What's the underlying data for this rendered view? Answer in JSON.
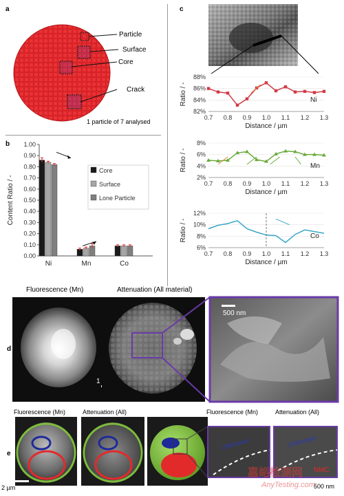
{
  "panels": {
    "a": {
      "letter": "a",
      "labels": {
        "particle": "Particle",
        "surface": "Surface",
        "core": "Core",
        "crack": "Crack"
      },
      "caption": "1 particle of 7 analysed",
      "colors": {
        "sphere": "#e8262a",
        "sphere_edge": "#b31418",
        "box": "#1a1a1a",
        "overlay": "#7b3fa0"
      }
    },
    "b": {
      "letter": "b",
      "chart_data": {
        "type": "bar",
        "categories": [
          "Ni",
          "Mn",
          "Co"
        ],
        "series": [
          {
            "name": "Core",
            "values": [
              0.86,
              0.06,
              0.09
            ],
            "errors": [
              0.02,
              0.01,
              0.01
            ],
            "color": "#1a1a1a"
          },
          {
            "name": "Surface",
            "values": [
              0.84,
              0.07,
              0.09
            ],
            "errors": [
              0.01,
              0.01,
              0.01
            ],
            "color": "#a6a6a6"
          },
          {
            "name": "Lone Particle",
            "values": [
              0.82,
              0.09,
              0.09
            ],
            "errors": [
              0.01,
              0.02,
              0.01
            ],
            "color": "#7f7f7f"
          }
        ],
        "ylabel": "Content Ratio / -",
        "ylim": [
          0,
          1
        ],
        "yticks": [
          "0.00",
          "0.10",
          "0.20",
          "0.30",
          "0.40",
          "0.50",
          "0.60",
          "0.70",
          "0.80",
          "0.90",
          "1.00"
        ],
        "error_color": "#e8262a",
        "legend_placement": "right"
      }
    },
    "c": {
      "letter": "c",
      "chart_data": [
        {
          "type": "line",
          "label": "Ni",
          "x": [
            0.7,
            0.75,
            0.8,
            0.85,
            0.9,
            0.95,
            1.0,
            1.05,
            1.1,
            1.15,
            1.2,
            1.25,
            1.3
          ],
          "y": [
            86.0,
            85.4,
            85.2,
            83.1,
            84.2,
            86.1,
            87.0,
            85.6,
            86.3,
            85.4,
            85.5,
            85.3,
            85.5
          ],
          "ylim": [
            82,
            88
          ],
          "yticks": [
            "82%",
            "84%",
            "86%",
            "88%"
          ],
          "color": "#d23a45",
          "ylabel": "Ratio / -",
          "xlabel": "Distance / µm"
        },
        {
          "type": "line",
          "label": "Mn",
          "x": [
            0.7,
            0.75,
            0.8,
            0.85,
            0.9,
            0.95,
            1.0,
            1.05,
            1.1,
            1.15,
            1.2,
            1.25,
            1.3
          ],
          "y": [
            5.0,
            4.9,
            5.0,
            6.3,
            6.5,
            5.1,
            4.8,
            6.1,
            6.6,
            6.5,
            6.0,
            6.0,
            5.9
          ],
          "ylim": [
            2,
            8
          ],
          "yticks": [
            "2%",
            "4%",
            "6%",
            "8%"
          ],
          "color": "#6aaa3a",
          "ylabel": "Ratio / -",
          "xlabel": "Distance / µm"
        },
        {
          "type": "line",
          "label": "Co",
          "x": [
            0.7,
            0.75,
            0.8,
            0.85,
            0.9,
            0.95,
            1.0,
            1.05,
            1.1,
            1.15,
            1.2,
            1.25,
            1.3
          ],
          "y": [
            9.3,
            9.9,
            10.2,
            10.7,
            9.3,
            8.7,
            8.2,
            8.1,
            6.9,
            8.3,
            9.1,
            8.8,
            8.5
          ],
          "ylim": [
            6,
            12
          ],
          "yticks": [
            "6%",
            "8%",
            "10%",
            "12%"
          ],
          "color": "#3aa6c8",
          "ylabel": "Ratio / -",
          "xlabel": "Distance / µm"
        }
      ],
      "xticks": [
        "0.7",
        "0.8",
        "0.9",
        "1.0",
        "1.1",
        "1.2",
        "1.3"
      ],
      "xlim": [
        0.7,
        1.3
      ]
    },
    "d": {
      "letter": "d",
      "fluorescence_title": "Fluorescence (Mn)",
      "attenuation_title": "Attenuation (All material)",
      "scale_left": "1 µm",
      "scale_right": "500 nm",
      "frame_color": "#6a3aa8"
    },
    "e": {
      "letter": "e",
      "titles": [
        "Fluorescence (Mn)",
        "Attenuation (All)",
        "Fluorescence (Mn)",
        "Attenuation (All)"
      ],
      "labels": {
        "unknown_1": "Unknown",
        "unknown_2": "Unknown",
        "nmc": "NMC"
      },
      "scale_left": "2 µm",
      "scale_right": "500 nm",
      "colors": {
        "green": "#7dbb3c",
        "red": "#e32a2a",
        "blue": "#1f2a9a"
      }
    },
    "watermark": {
      "line1": "嘉峪检测网",
      "line2": "AnyTesting.com"
    }
  }
}
